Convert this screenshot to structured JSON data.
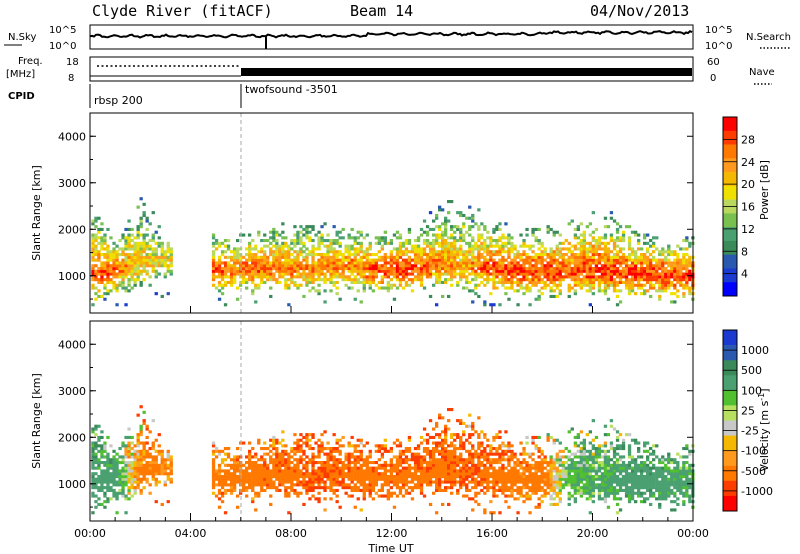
{
  "header": {
    "station": "Clyde River (fitACF)",
    "beam": "Beam 14",
    "date": "04/Nov/2013"
  },
  "top_panels": {
    "nsky_label": "N.Sky",
    "nsearch_label": "N.Search",
    "nsky_ticks": [
      "10^5",
      "10^0"
    ],
    "nsearch_ticks": [
      "10^5",
      "10^0"
    ],
    "freq_label": "Freq.",
    "freq_unit": "[MHz]",
    "freq_ticks": [
      "18",
      "8"
    ],
    "nave_label": "Nave",
    "nave_ticks": [
      "60",
      "0"
    ],
    "cpid_label": "CPID",
    "cpid_segments": [
      {
        "name": "rbsp 200",
        "start_hour": 0
      },
      {
        "name": "twofsound -3501",
        "start_hour": 6
      }
    ]
  },
  "colorbars": {
    "power": {
      "label": "Power [dB]",
      "ticks": [
        "28",
        "24",
        "20",
        "16",
        "12",
        "8",
        "4"
      ],
      "colors": [
        "#ff0000",
        "#ff3c00",
        "#ff7800",
        "#ff9a1f",
        "#f5b800",
        "#f0e000",
        "#b8d860",
        "#78c050",
        "#4aa070",
        "#3a8a5a",
        "#2a5ab0",
        "#1a3ad0",
        "#0000ff"
      ]
    },
    "velocity": {
      "label": "Velocity [m s",
      "label_sup": "-1",
      "label_close": "]",
      "ticks": [
        "1000",
        "500",
        "100",
        "25",
        "-25",
        "-100",
        "-500",
        "-1000"
      ],
      "colors": [
        "#1a3ad0",
        "#2a5ab0",
        "#3a8a5a",
        "#4aa070",
        "#50c030",
        "#b8e060",
        "#c8c8c8",
        "#f5b800",
        "#ff9a1f",
        "#ff7800",
        "#ff3c00",
        "#ff0000"
      ]
    }
  },
  "range_axis": {
    "label": "Slant Range [km]",
    "ticks": [
      "4000",
      "3000",
      "2000",
      "1000"
    ]
  },
  "time_axis": {
    "label": "Time UT",
    "ticks": [
      "00:00",
      "04:00",
      "08:00",
      "12:00",
      "16:00",
      "20:00",
      "00:00"
    ]
  },
  "chart_data": [
    {
      "type": "heatmap",
      "title": "Power [dB]",
      "xlabel": "Time UT",
      "ylabel": "Slant Range [km]",
      "xlim": [
        0,
        24
      ],
      "ylim": [
        200,
        4500
      ],
      "zlim": [
        0,
        30
      ],
      "x": [
        0,
        1,
        2,
        3,
        4,
        5,
        6,
        7,
        8,
        9,
        10,
        11,
        12,
        13,
        14,
        15,
        16,
        17,
        18,
        19,
        20,
        21,
        22,
        23
      ],
      "echo_band_center_km": [
        1000,
        1100,
        1200,
        1300,
        null,
        1100,
        1100,
        1150,
        1100,
        1100,
        1150,
        1100,
        1100,
        1100,
        1200,
        1150,
        1100,
        1050,
        1050,
        1050,
        1050,
        1000,
        1000,
        950
      ],
      "echo_band_top_km": [
        2400,
        1800,
        2800,
        1900,
        null,
        1900,
        1900,
        2000,
        2200,
        2200,
        2100,
        2000,
        2000,
        2000,
        2700,
        2600,
        2200,
        2000,
        2100,
        2200,
        2400,
        2300,
        1900,
        1800
      ],
      "peak_power_db": [
        28,
        26,
        20,
        18,
        null,
        26,
        26,
        26,
        24,
        24,
        24,
        26,
        28,
        28,
        24,
        22,
        28,
        28,
        28,
        28,
        28,
        28,
        28,
        28
      ]
    },
    {
      "type": "heatmap",
      "title": "Velocity [m s-1]",
      "xlabel": "Time UT",
      "ylabel": "Slant Range [km]",
      "xlim": [
        0,
        24
      ],
      "ylim": [
        200,
        4500
      ],
      "zlim": [
        -1000,
        1000
      ],
      "x": [
        0,
        1,
        2,
        3,
        4,
        5,
        6,
        7,
        8,
        9,
        10,
        11,
        12,
        13,
        14,
        15,
        16,
        17,
        18,
        19,
        20,
        21,
        22,
        23
      ],
      "dominant_velocity_ms": [
        200,
        150,
        -150,
        -100,
        null,
        -150,
        -150,
        -200,
        -200,
        -250,
        -200,
        -200,
        -200,
        -200,
        -200,
        -250,
        -200,
        -150,
        -150,
        100,
        100,
        150,
        200,
        150
      ]
    }
  ]
}
